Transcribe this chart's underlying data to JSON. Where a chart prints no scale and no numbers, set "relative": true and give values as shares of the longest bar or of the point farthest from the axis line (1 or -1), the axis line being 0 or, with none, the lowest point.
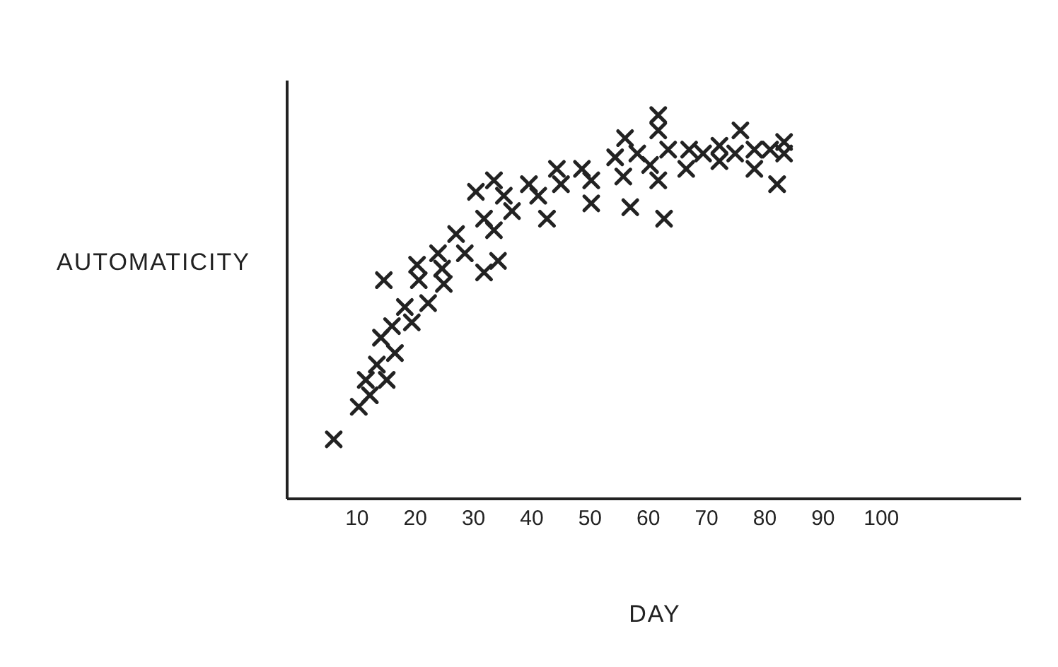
{
  "chart_data": {
    "type": "scatter",
    "relative": true,
    "xlabel": "DAY",
    "ylabel": "AUTOMATICITY",
    "color": "#222222",
    "marker": "cross",
    "grid": false,
    "legend": false,
    "tick_labels": "x",
    "xlim": [
      -2,
      124
    ],
    "xticks": [
      10,
      20,
      30,
      40,
      50,
      60,
      70,
      80,
      90,
      100
    ],
    "x": [
      6.0,
      10.3,
      12.2,
      11.5,
      15.1,
      13.4,
      16.5,
      14.1,
      16.0,
      19.4,
      18.2,
      22.2,
      14.6,
      20.3,
      20.6,
      24.6,
      24.9,
      23.9,
      28.5,
      31.8,
      34.2,
      27.0,
      30.4,
      33.5,
      35.2,
      31.8,
      33.5,
      36.6,
      39.5,
      41.1,
      42.6,
      44.3,
      45.0,
      48.6,
      50.2,
      50.2,
      54.3,
      55.7,
      56.9,
      58.1,
      60.3,
      61.7,
      62.7,
      61.7,
      61.7,
      56.0,
      63.4,
      67.0,
      66.5,
      69.4,
      72.2,
      72.2,
      74.9,
      75.8,
      78.2,
      78.2,
      80.9,
      83.3,
      83.3,
      82.1
    ],
    "values": [
      0.155,
      0.24,
      0.27,
      0.31,
      0.31,
      0.35,
      0.38,
      0.42,
      0.45,
      0.46,
      0.5,
      0.51,
      0.57,
      0.61,
      0.57,
      0.6,
      0.56,
      0.64,
      0.64,
      0.59,
      0.62,
      0.69,
      0.8,
      0.83,
      0.79,
      0.73,
      0.7,
      0.75,
      0.82,
      0.79,
      0.73,
      0.86,
      0.82,
      0.86,
      0.83,
      0.77,
      0.89,
      0.84,
      0.76,
      0.9,
      0.87,
      0.83,
      0.73,
      1.0,
      0.96,
      0.94,
      0.91,
      0.91,
      0.86,
      0.9,
      0.92,
      0.88,
      0.9,
      0.96,
      0.91,
      0.86,
      0.91,
      0.93,
      0.9,
      0.82
    ]
  }
}
